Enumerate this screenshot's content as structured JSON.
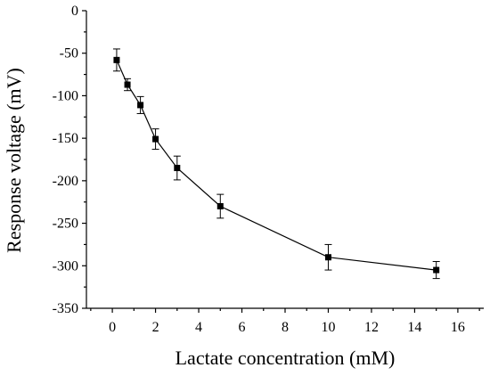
{
  "chart_data": {
    "type": "line",
    "title": "",
    "xlabel": "Lactate concentration (mM)",
    "ylabel": "Response voltage (mV)",
    "xlim": [
      -1.2,
      17.2
    ],
    "ylim": [
      -350,
      0
    ],
    "xticks": [
      0,
      2,
      4,
      6,
      8,
      10,
      12,
      14,
      16
    ],
    "yticks": [
      0,
      -50,
      -100,
      -150,
      -200,
      -250,
      -300,
      -350
    ],
    "grid": false,
    "marker": "square",
    "series": [
      {
        "x": [
          0.2,
          0.7,
          1.3,
          2,
          3,
          5,
          10,
          15
        ],
        "y": [
          -58,
          -87,
          -111,
          -151,
          -185,
          -230,
          -290,
          -305
        ],
        "error": [
          13,
          7,
          10,
          12,
          14,
          14,
          15,
          10
        ]
      }
    ]
  }
}
